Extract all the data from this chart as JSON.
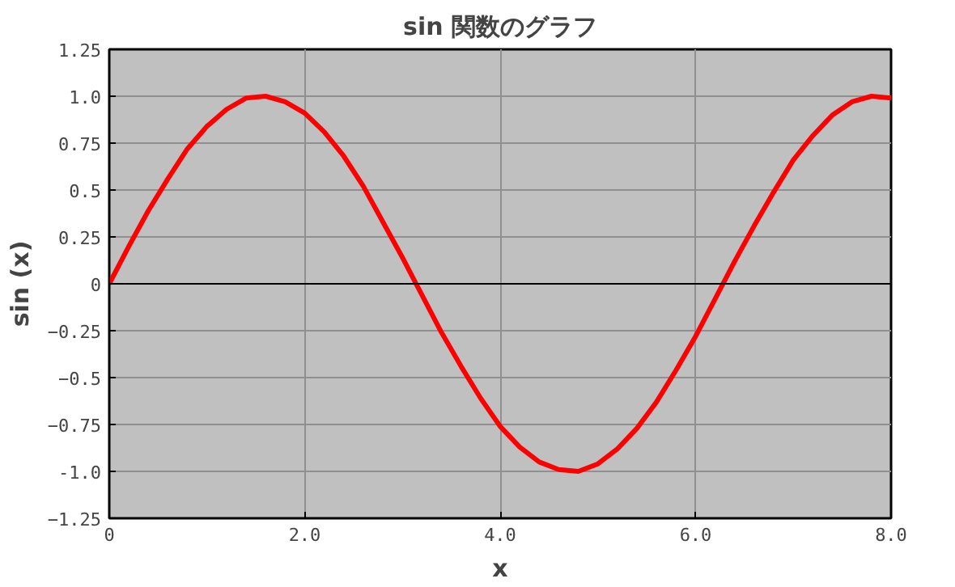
{
  "chart_data": {
    "type": "line",
    "title": "sin 関数のグラフ",
    "xlabel": "x",
    "ylabel": "sin (x)",
    "x": [
      0,
      0.2,
      0.4,
      0.6,
      0.8,
      1.0,
      1.2,
      1.4,
      1.6,
      1.8,
      2.0,
      2.2,
      2.4,
      2.6,
      2.8,
      3.0,
      3.2,
      3.4,
      3.6,
      3.8,
      4.0,
      4.2,
      4.4,
      4.6,
      4.8,
      5.0,
      5.2,
      5.4,
      5.6,
      5.8,
      6.0,
      6.2,
      6.4,
      6.6,
      6.8,
      7.0,
      7.2,
      7.4,
      7.6,
      7.8,
      8.0
    ],
    "series": [
      {
        "color": "#ff0000",
        "values": [
          0,
          0.2,
          0.39,
          0.56,
          0.72,
          0.84,
          0.93,
          0.99,
          1.0,
          0.97,
          0.91,
          0.81,
          0.68,
          0.52,
          0.33,
          0.14,
          -0.06,
          -0.26,
          -0.44,
          -0.61,
          -0.76,
          -0.87,
          -0.95,
          -0.99,
          -1.0,
          -0.96,
          -0.88,
          -0.77,
          -0.63,
          -0.46,
          -0.28,
          -0.08,
          0.12,
          0.31,
          0.49,
          0.66,
          0.79,
          0.9,
          0.97,
          1.0,
          0.99
        ]
      }
    ],
    "xlim": [
      0,
      8
    ],
    "xticks": [
      0,
      {
        "value": 2,
        "label": "2.0"
      },
      {
        "value": 4,
        "label": "4.0"
      },
      {
        "value": 6,
        "label": "6.0"
      },
      {
        "value": 8,
        "label": "8.0"
      }
    ],
    "ylim": [
      -1.25,
      1.25
    ],
    "yticks": [
      -1.25,
      {
        "value": -1,
        "label": "-1.0"
      },
      -0.75,
      -0.5,
      -0.25,
      0,
      0.25,
      0.5,
      0.75,
      {
        "value": 1,
        "label": "1.0"
      },
      1.25
    ],
    "ref_lines": [
      {
        "axis": "y",
        "value": 0,
        "color": "#000000"
      }
    ],
    "grid": true,
    "marker": "none",
    "line_style": "solid"
  }
}
